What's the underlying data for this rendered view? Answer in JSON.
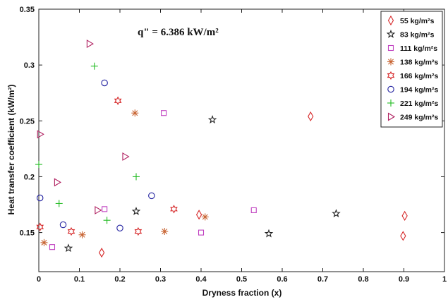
{
  "chart_data": {
    "type": "scatter",
    "title": "",
    "annotation": "q\" = 6.386 kW/m²",
    "xlabel": "Dryness fraction (x)",
    "ylabel": "Heat transfer coefficient (kW/m²)",
    "xlim": [
      0,
      1
    ],
    "ylim": [
      0.115,
      0.35
    ],
    "xticks": [
      0,
      0.1,
      0.2,
      0.3,
      0.4,
      0.5,
      0.6,
      0.7,
      0.8,
      0.9,
      1
    ],
    "yticks": [
      0.15,
      0.2,
      0.25,
      0.3,
      0.35
    ],
    "xtick_labels": [
      "0",
      "0.1",
      "0.2",
      "0.3",
      "0.4",
      "0.5",
      "0.6",
      "0.7",
      "0.8",
      "0.9",
      "1"
    ],
    "ytick_labels": [
      "0.15",
      "0.2",
      "0.25",
      "0.3",
      "0.35"
    ],
    "grid": false,
    "legend_position": "top-right",
    "series": [
      {
        "name": "55 kg/m²s",
        "marker": "diamond",
        "color": "#d62728",
        "points": [
          [
            0.155,
            0.132
          ],
          [
            0.395,
            0.166
          ],
          [
            0.67,
            0.254
          ],
          [
            0.898,
            0.147
          ],
          [
            0.902,
            0.165
          ]
        ]
      },
      {
        "name": "83 kg/m²s",
        "marker": "pentagram",
        "color": "#222222",
        "points": [
          [
            0.073,
            0.136
          ],
          [
            0.24,
            0.169
          ],
          [
            0.428,
            0.251
          ],
          [
            0.567,
            0.149
          ],
          [
            0.733,
            0.167
          ]
        ]
      },
      {
        "name": "111 kg/m²s",
        "marker": "square",
        "color": "#c040c0",
        "points": [
          [
            0.033,
            0.137
          ],
          [
            0.162,
            0.171
          ],
          [
            0.308,
            0.257
          ],
          [
            0.4,
            0.15
          ],
          [
            0.53,
            0.17
          ]
        ]
      },
      {
        "name": "138 kg/m²s",
        "marker": "asterisk",
        "color": "#c86432",
        "points": [
          [
            0.013,
            0.141
          ],
          [
            0.107,
            0.148
          ],
          [
            0.237,
            0.257
          ],
          [
            0.31,
            0.151
          ],
          [
            0.41,
            0.164
          ]
        ]
      },
      {
        "name": "166 kg/m²s",
        "marker": "hexagram",
        "color": "#d62728",
        "points": [
          [
            0.003,
            0.155
          ],
          [
            0.08,
            0.151
          ],
          [
            0.195,
            0.268
          ],
          [
            0.245,
            0.151
          ],
          [
            0.333,
            0.171
          ]
        ]
      },
      {
        "name": "194 kg/m²s",
        "marker": "circle",
        "color": "#1f1f9f",
        "points": [
          [
            0.003,
            0.181
          ],
          [
            0.06,
            0.157
          ],
          [
            0.162,
            0.284
          ],
          [
            0.2,
            0.154
          ],
          [
            0.278,
            0.183
          ]
        ]
      },
      {
        "name": "221 kg/m²s",
        "marker": "plus",
        "color": "#22bb22",
        "points": [
          [
            0.0,
            0.211
          ],
          [
            0.05,
            0.176
          ],
          [
            0.137,
            0.299
          ],
          [
            0.168,
            0.161
          ],
          [
            0.24,
            0.2
          ]
        ]
      },
      {
        "name": "249 kg/m²s",
        "marker": "triangle-right",
        "color": "#b02060",
        "points": [
          [
            0.003,
            0.238
          ],
          [
            0.045,
            0.195
          ],
          [
            0.125,
            0.319
          ],
          [
            0.145,
            0.17
          ],
          [
            0.213,
            0.218
          ]
        ]
      }
    ]
  }
}
